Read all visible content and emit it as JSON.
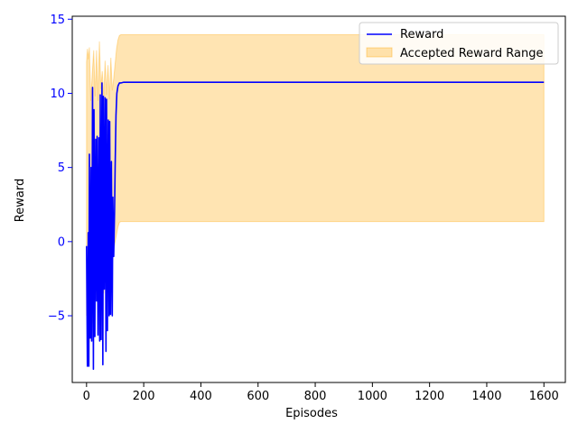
{
  "chart_data": {
    "type": "line",
    "title": "",
    "xlabel": "Episodes",
    "ylabel": "Reward",
    "xlim": [
      -50,
      1675
    ],
    "ylim": [
      -9.5,
      15.2
    ],
    "x_ticks": [
      0,
      200,
      400,
      600,
      800,
      1000,
      1200,
      1400,
      1600
    ],
    "y_ticks": [
      -5,
      0,
      5,
      10,
      15
    ],
    "x_tick_labels": [
      "0",
      "200",
      "400",
      "600",
      "800",
      "1000",
      "1200",
      "1400",
      "1600"
    ],
    "y_tick_labels": [
      "−5",
      "0",
      "5",
      "10",
      "15"
    ],
    "grid": false,
    "legend_position": "top-right",
    "colors": {
      "reward_line": "#0000ff",
      "band_fill": "#ffa500",
      "y_tick_labels": "#0000ff"
    },
    "series": [
      {
        "name": "Reward",
        "kind": "line",
        "x": [
          0,
          3,
          6,
          8,
          10,
          13,
          16,
          18,
          21,
          24,
          26,
          29,
          32,
          35,
          37,
          40,
          43,
          46,
          48,
          51,
          54,
          57,
          59,
          62,
          65,
          68,
          70,
          73,
          76,
          79,
          81,
          84,
          87,
          90,
          92,
          95,
          98,
          100,
          103,
          106,
          110,
          115,
          120,
          130,
          150,
          200,
          400,
          800,
          1200,
          1600
        ],
        "values": [
          -0.3,
          -8.4,
          0.6,
          -8.4,
          5.9,
          -6.5,
          5.0,
          -6.7,
          10.4,
          -8.6,
          8.9,
          -6.4,
          6.9,
          -4.0,
          7.1,
          -6.3,
          7.0,
          -6.7,
          9.9,
          -6.6,
          10.7,
          -8.3,
          9.8,
          -3.2,
          9.7,
          -7.4,
          9.6,
          -6.0,
          8.2,
          -5.0,
          8.1,
          -4.9,
          5.4,
          -5.0,
          3.0,
          -1.0,
          2.0,
          5.0,
          8.5,
          10.0,
          10.5,
          10.7,
          10.7,
          10.75,
          10.75,
          10.75,
          10.75,
          10.75,
          10.75,
          10.75
        ]
      },
      {
        "name": "Accepted Reward Range",
        "kind": "band",
        "x": [
          0,
          3,
          6,
          10,
          15,
          20,
          25,
          30,
          35,
          40,
          45,
          50,
          55,
          60,
          65,
          70,
          75,
          80,
          85,
          90,
          95,
          100,
          105,
          110,
          115,
          120,
          130,
          200,
          600,
          1000,
          1400,
          1600
        ],
        "upper": [
          12.1,
          13.0,
          12.3,
          13.1,
          9.5,
          11.3,
          12.9,
          9.8,
          12.9,
          9.5,
          13.5,
          10.3,
          11.5,
          9.7,
          12.2,
          9.9,
          11.9,
          9.6,
          12.4,
          10.2,
          11.0,
          12.0,
          13.0,
          13.6,
          13.9,
          13.95,
          13.95,
          13.95,
          13.95,
          13.95,
          13.95,
          13.95
        ],
        "lower": [
          -5.0,
          -2.0,
          -4.0,
          -6.8,
          -3.0,
          -5.5,
          -1.0,
          -2.0,
          -4.0,
          -3.0,
          -5.0,
          -1.0,
          -2.5,
          -3.5,
          -1.0,
          -2.0,
          -4.0,
          -1.0,
          -2.5,
          -1.5,
          -0.5,
          0.0,
          0.5,
          1.0,
          1.3,
          1.35,
          1.35,
          1.35,
          1.35,
          1.35,
          1.35,
          1.35
        ]
      }
    ]
  }
}
